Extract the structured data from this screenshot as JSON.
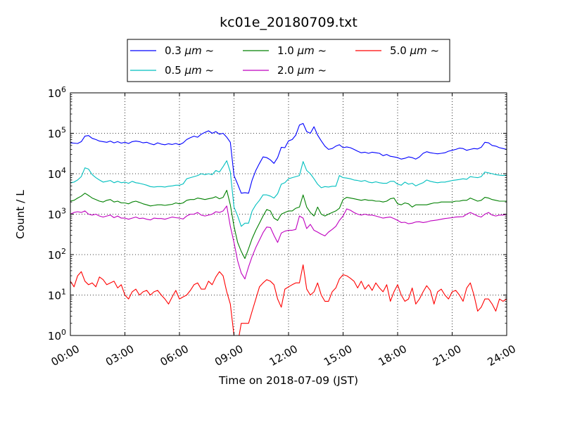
{
  "chart_data": {
    "type": "line",
    "title": "kc01e_20180709.txt",
    "xlabel": "Time on 2018-07-09 (JST)",
    "ylabel": "Count / L",
    "y_scale": "log",
    "ylim": [
      1,
      1000000
    ],
    "y_ticks": [
      {
        "value": 1,
        "base": "10",
        "exp": "0"
      },
      {
        "value": 10,
        "base": "10",
        "exp": "1"
      },
      {
        "value": 100,
        "base": "10",
        "exp": "2"
      },
      {
        "value": 1000,
        "base": "10",
        "exp": "3"
      },
      {
        "value": 10000,
        "base": "10",
        "exp": "4"
      },
      {
        "value": 100000,
        "base": "10",
        "exp": "5"
      },
      {
        "value": 1000000,
        "base": "10",
        "exp": "6"
      }
    ],
    "x_ticks": [
      "00:00",
      "03:00",
      "06:00",
      "09:00",
      "12:00",
      "15:00",
      "18:00",
      "21:00",
      "24:00"
    ],
    "x_range_hours": [
      0,
      24
    ],
    "grid": true,
    "legend_position": "top-center",
    "x_hours": [
      0.0,
      0.2,
      0.4,
      0.6,
      0.8,
      1.0,
      1.2,
      1.4,
      1.6,
      1.8,
      2.0,
      2.2,
      2.4,
      2.6,
      2.8,
      3.0,
      3.2,
      3.4,
      3.6,
      3.8,
      4.0,
      4.2,
      4.4,
      4.6,
      4.8,
      5.0,
      5.2,
      5.4,
      5.6,
      5.8,
      6.0,
      6.2,
      6.4,
      6.6,
      6.8,
      7.0,
      7.2,
      7.4,
      7.6,
      7.8,
      8.0,
      8.2,
      8.4,
      8.6,
      8.8,
      9.0,
      9.2,
      9.4,
      9.6,
      9.8,
      10.0,
      10.2,
      10.4,
      10.6,
      10.8,
      11.0,
      11.2,
      11.4,
      11.6,
      11.8,
      12.0,
      12.2,
      12.4,
      12.6,
      12.8,
      13.0,
      13.2,
      13.4,
      13.6,
      13.8,
      14.0,
      14.2,
      14.4,
      14.6,
      14.8,
      15.0,
      15.2,
      15.4,
      15.6,
      15.8,
      16.0,
      16.2,
      16.4,
      16.6,
      16.8,
      17.0,
      17.2,
      17.4,
      17.6,
      17.8,
      18.0,
      18.2,
      18.4,
      18.6,
      18.8,
      19.0,
      19.2,
      19.4,
      19.6,
      19.8,
      20.0,
      20.2,
      20.4,
      20.6,
      20.8,
      21.0,
      21.2,
      21.4,
      21.6,
      21.8,
      22.0,
      22.2,
      22.4,
      22.6,
      22.8,
      23.0,
      23.2,
      23.4,
      23.6,
      23.8,
      24.0
    ],
    "series": [
      {
        "name": "0.3",
        "color": "#0000ff",
        "values": [
          58000,
          57000,
          56000,
          62000,
          85000,
          88000,
          75000,
          70000,
          64000,
          62000,
          60000,
          64000,
          58000,
          62000,
          57000,
          60000,
          56000,
          62000,
          64000,
          62000,
          58000,
          60000,
          55000,
          52000,
          58000,
          54000,
          52000,
          55000,
          53000,
          56000,
          52000,
          58000,
          70000,
          78000,
          85000,
          80000,
          95000,
          105000,
          115000,
          100000,
          110000,
          95000,
          100000,
          80000,
          60000,
          9000,
          5500,
          3300,
          3400,
          3300,
          7000,
          12000,
          18000,
          26000,
          25000,
          22000,
          18000,
          25000,
          45000,
          44000,
          65000,
          70000,
          90000,
          160000,
          175000,
          110000,
          100000,
          145000,
          90000,
          65000,
          48000,
          40000,
          42000,
          48000,
          52000,
          44000,
          46000,
          44000,
          40000,
          36000,
          33000,
          34000,
          32000,
          34000,
          33000,
          32000,
          28000,
          30000,
          27000,
          26000,
          25000,
          23000,
          24000,
          26000,
          25000,
          23000,
          26000,
          32000,
          35000,
          33000,
          32000,
          31000,
          32000,
          33000,
          36000,
          38000,
          40000,
          43000,
          42000,
          38000,
          40000,
          42000,
          41000,
          45000,
          60000,
          58000,
          50000,
          48000,
          44000,
          42000,
          40000
        ]
      },
      {
        "name": "0.5",
        "color": "#00bfbf",
        "values": [
          6000,
          6200,
          7000,
          8500,
          14000,
          13000,
          9500,
          8000,
          7000,
          6200,
          6500,
          6800,
          6000,
          6500,
          6000,
          6200,
          5800,
          6500,
          6000,
          5800,
          5500,
          5200,
          4800,
          4700,
          4800,
          4800,
          4700,
          4900,
          5000,
          5200,
          5200,
          5600,
          7500,
          8000,
          8500,
          9000,
          10000,
          9500,
          10000,
          9500,
          12000,
          11000,
          15000,
          21000,
          11000,
          1500,
          900,
          500,
          600,
          600,
          1200,
          1700,
          2200,
          3000,
          3000,
          2800,
          2500,
          3200,
          5500,
          6000,
          7500,
          8000,
          8500,
          9000,
          20000,
          12000,
          10000,
          7500,
          5500,
          4500,
          4800,
          4700,
          4900,
          4900,
          9000,
          8000,
          7800,
          7500,
          7000,
          6800,
          6500,
          6800,
          6200,
          6000,
          6300,
          6000,
          5800,
          5800,
          6500,
          6500,
          5500,
          5200,
          6200,
          5500,
          5800,
          5000,
          5500,
          6000,
          7000,
          6500,
          6200,
          6000,
          6200,
          6200,
          6500,
          6800,
          7000,
          7200,
          7500,
          7300,
          8500,
          8200,
          8000,
          8500,
          11000,
          10500,
          10000,
          9500,
          9200,
          9000,
          9200
        ]
      },
      {
        "name": "1.0",
        "color": "#008000",
        "values": [
          2100,
          2200,
          2500,
          2800,
          3300,
          2900,
          2500,
          2300,
          2100,
          2000,
          2200,
          2300,
          2000,
          2100,
          1900,
          1900,
          1800,
          2000,
          2100,
          1950,
          1800,
          1700,
          1600,
          1650,
          1700,
          1700,
          1650,
          1700,
          1750,
          1900,
          1800,
          1900,
          2200,
          2300,
          2300,
          2500,
          2400,
          2300,
          2400,
          2500,
          2700,
          2400,
          2600,
          3900,
          1700,
          500,
          200,
          120,
          80,
          140,
          250,
          400,
          600,
          900,
          1300,
          1200,
          800,
          700,
          1000,
          1100,
          1200,
          1200,
          1400,
          1500,
          3000,
          1500,
          1100,
          900,
          1500,
          1000,
          900,
          1000,
          1100,
          1200,
          1400,
          2300,
          2600,
          2500,
          2400,
          2300,
          2200,
          2300,
          2200,
          2200,
          2100,
          2100,
          2000,
          2100,
          2400,
          2500,
          1800,
          1700,
          1900,
          1800,
          1500,
          1700,
          1700,
          1700,
          1700,
          1800,
          1900,
          1900,
          2000,
          2000,
          2000,
          2000,
          2100,
          2100,
          2200,
          2200,
          2500,
          2300,
          2100,
          2200,
          2600,
          2500,
          2300,
          2200,
          2100,
          2100,
          2100
        ]
      },
      {
        "name": "2.0",
        "color": "#bf00bf",
        "values": [
          1000,
          1100,
          1150,
          1100,
          1200,
          1000,
          950,
          1000,
          900,
          850,
          900,
          950,
          820,
          900,
          800,
          800,
          750,
          800,
          850,
          780,
          800,
          750,
          720,
          800,
          780,
          780,
          750,
          800,
          850,
          820,
          800,
          760,
          900,
          1000,
          1000,
          1100,
          950,
          900,
          950,
          1000,
          1150,
          1100,
          1200,
          1600,
          500,
          200,
          70,
          35,
          25,
          50,
          90,
          150,
          230,
          350,
          480,
          470,
          300,
          200,
          340,
          380,
          400,
          400,
          420,
          900,
          800,
          440,
          560,
          400,
          360,
          320,
          290,
          360,
          420,
          500,
          700,
          900,
          1350,
          1250,
          1100,
          1000,
          950,
          1000,
          950,
          950,
          900,
          850,
          800,
          830,
          850,
          780,
          700,
          620,
          630,
          580,
          600,
          640,
          650,
          620,
          640,
          680,
          700,
          720,
          750,
          780,
          800,
          820,
          850,
          860,
          870,
          1000,
          1100,
          1000,
          900,
          850,
          1000,
          1100,
          950,
          900,
          950,
          950,
          1000
        ]
      },
      {
        "name": "5.0",
        "color": "#ff0000",
        "values": [
          22,
          16,
          30,
          38,
          22,
          18,
          20,
          16,
          28,
          24,
          18,
          20,
          22,
          15,
          18,
          10,
          8,
          12,
          14,
          10,
          12,
          13,
          10,
          12,
          13,
          10,
          8,
          6,
          9,
          13,
          8,
          9,
          10,
          13,
          18,
          20,
          14,
          14,
          22,
          18,
          28,
          38,
          30,
          12,
          6,
          1,
          0,
          2,
          2,
          2,
          4,
          8,
          16,
          20,
          24,
          22,
          18,
          8,
          5,
          14,
          16,
          18,
          20,
          20,
          56,
          14,
          10,
          12,
          20,
          10,
          7,
          7,
          12,
          15,
          25,
          32,
          30,
          26,
          22,
          15,
          22,
          14,
          18,
          13,
          20,
          15,
          12,
          18,
          7,
          12,
          18,
          10,
          7,
          8,
          15,
          6,
          8,
          12,
          17,
          13,
          6,
          12,
          14,
          10,
          8,
          12,
          13,
          10,
          7,
          15,
          20,
          10,
          4,
          5,
          8,
          8,
          6,
          4,
          8,
          7,
          8
        ]
      }
    ],
    "legend": [
      {
        "series": 0,
        "lead": "0.3 ",
        "unit": "μm",
        "tail": "  ~"
      },
      {
        "series": 2,
        "lead": "1.0 ",
        "unit": "μm",
        "tail": "  ~"
      },
      {
        "series": 4,
        "lead": "5.0 ",
        "unit": "μm",
        "tail": "  ~"
      },
      {
        "series": 1,
        "lead": "0.5 ",
        "unit": "μm",
        "tail": "  ~"
      },
      {
        "series": 3,
        "lead": "2.0 ",
        "unit": "μm",
        "tail": "  ~"
      }
    ]
  }
}
